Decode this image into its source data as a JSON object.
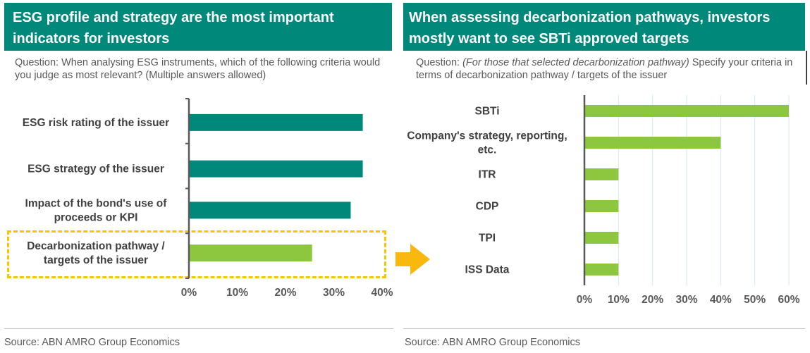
{
  "left": {
    "title": "ESG profile and strategy are the most important indicators for investors",
    "question": "Question: When analysing ESG instruments, which of the following criteria would you judge as most relevant? (Multiple answers allowed)",
    "source": "Source: ABN AMRO Group Economics"
  },
  "right": {
    "title": "When assessing decarbonization pathways, investors mostly want to see SBTi approved targets",
    "question_prefix": "Question: ",
    "question_italic": "(For those that selected decarbonization pathway)",
    "question_rest": " Specify your criteria in terms of decarbonization pathway / targets of the issuer",
    "source": "Source: ABN AMRO Group Economics"
  },
  "colors": {
    "teal": "#00897b",
    "green": "#8dc63f",
    "highlight": "#f7c600",
    "arrow": "#f9b80e"
  },
  "chart_data": [
    {
      "type": "bar",
      "orientation": "horizontal",
      "categories": [
        [
          "ESG risk rating of the issuer"
        ],
        [
          "ESG strategy of the issuer"
        ],
        [
          "Impact of the bond's use of",
          "proceeds or KPI"
        ],
        [
          "Decarbonization pathway /",
          "targets of the issuer"
        ]
      ],
      "values": [
        36,
        36,
        33.5,
        25.5
      ],
      "bar_colors": [
        "teal",
        "teal",
        "teal",
        "green"
      ],
      "xlim": [
        0,
        40
      ],
      "ticks": [
        0,
        10,
        20,
        30,
        40
      ],
      "tick_labels": [
        "0%",
        "10%",
        "20%",
        "30%",
        "40%"
      ],
      "highlighted_category": "Decarbonization pathway / targets of the issuer",
      "grid": false
    },
    {
      "type": "bar",
      "orientation": "horizontal",
      "categories": [
        [
          "SBTi"
        ],
        [
          "Company's strategy, reporting,",
          "etc."
        ],
        [
          "ITR"
        ],
        [
          "CDP"
        ],
        [
          "TPI"
        ],
        [
          "ISS Data"
        ]
      ],
      "values": [
        60,
        40,
        10,
        10,
        10,
        10
      ],
      "bar_colors": [
        "green",
        "green",
        "green",
        "green",
        "green",
        "green"
      ],
      "xlim": [
        0,
        60
      ],
      "ticks": [
        0,
        10,
        20,
        30,
        40,
        50,
        60
      ],
      "tick_labels": [
        "0%",
        "10%",
        "20%",
        "30%",
        "40%",
        "50%",
        "60%"
      ],
      "grid": true
    }
  ]
}
